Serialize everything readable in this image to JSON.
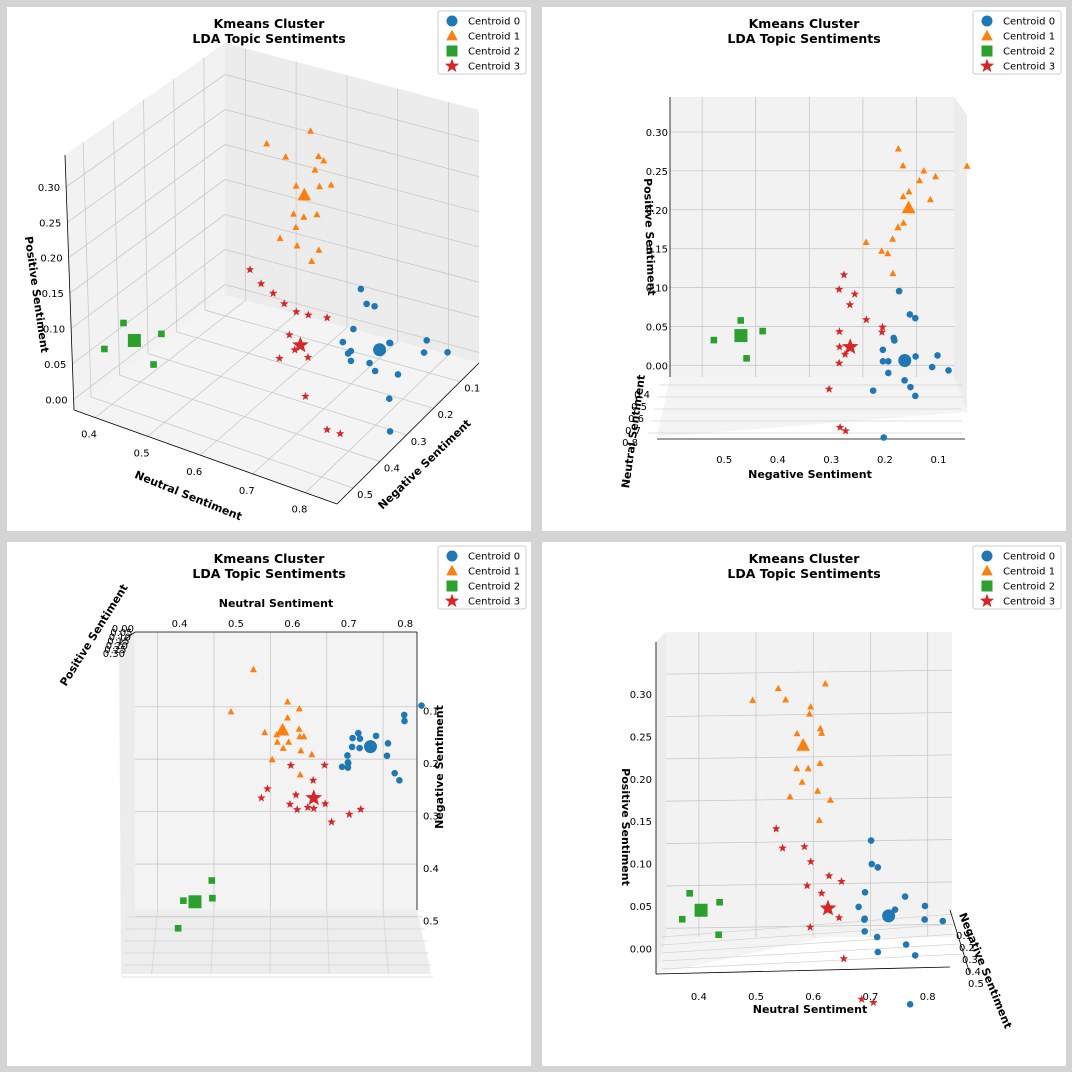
{
  "colors": {
    "Centroid 0": "#1f77b4",
    "Centroid 1": "#ff7f0e",
    "Centroid 2": "#2ca02c",
    "Centroid 3": "#d62728"
  },
  "chart_data": [
    {
      "type": "scatter",
      "title": "Kmeans Cluster\nLDA Topic Sentiments",
      "view": "perspective",
      "xlabel": "Neutral Sentiment",
      "ylabel": "Negative Sentiment",
      "zlabel": "Positive Sentiment",
      "x_ticks": [
        "0.4",
        "0.5",
        "0.6",
        "0.7",
        "0.8"
      ],
      "y_ticks": [
        "0.1",
        "0.2",
        "0.3",
        "0.4",
        "0.5"
      ],
      "z_ticks": [
        "0.00",
        "0.05",
        "0.10",
        "0.15",
        "0.20",
        "0.25",
        "0.30"
      ],
      "legend": [
        "Centroid 0",
        "Centroid 1",
        "Centroid 2",
        "Centroid 3"
      ],
      "legend_position": "top-right",
      "grid": true
    },
    {
      "type": "scatter",
      "title": "Kmeans Cluster\nLDA Topic Sentiments",
      "view": "front (negative vs positive)",
      "xlabel": "Negative Sentiment",
      "ylabel": "Neutral Sentiment",
      "zlabel": "Positive Sentiment",
      "x_ticks": [
        "0.5",
        "0.4",
        "0.3",
        "0.2",
        "0.1"
      ],
      "y_ticks": [
        "0.4",
        "0.5",
        "0.6",
        "0.7",
        "0.8"
      ],
      "z_ticks": [
        "0.00",
        "0.05",
        "0.10",
        "0.15",
        "0.20",
        "0.25",
        "0.30"
      ],
      "legend": [
        "Centroid 0",
        "Centroid 1",
        "Centroid 2",
        "Centroid 3"
      ],
      "legend_position": "top-right",
      "grid": true
    },
    {
      "type": "scatter",
      "title": "Kmeans Cluster\nLDA Topic Sentiments",
      "view": "top (neutral vs negative)",
      "xlabel": "Neutral Sentiment",
      "ylabel": "Negative Sentiment",
      "zlabel": "Positive Sentiment",
      "x_ticks": [
        "0.4",
        "0.5",
        "0.6",
        "0.7",
        "0.8"
      ],
      "y_ticks": [
        "0.1",
        "0.2",
        "0.3",
        "0.4",
        "0.5"
      ],
      "z_ticks": [
        "0.00",
        "0.05",
        "0.10",
        "0.15",
        "0.20",
        "0.25",
        "0.30"
      ],
      "legend": [
        "Centroid 0",
        "Centroid 1",
        "Centroid 2",
        "Centroid 3"
      ],
      "legend_position": "top-right",
      "grid": true
    },
    {
      "type": "scatter",
      "title": "Kmeans Cluster\nLDA Topic Sentiments",
      "view": "side (neutral vs positive)",
      "xlabel": "Neutral Sentiment",
      "ylabel": "Negative Sentiment",
      "zlabel": "Positive Sentiment",
      "x_ticks": [
        "0.4",
        "0.5",
        "0.6",
        "0.7",
        "0.8"
      ],
      "y_ticks": [
        "0.1",
        "0.2",
        "0.3",
        "0.4",
        "0.5"
      ],
      "z_ticks": [
        "0.00",
        "0.05",
        "0.10",
        "0.15",
        "0.20",
        "0.25",
        "0.30"
      ],
      "legend": [
        "Centroid 0",
        "Centroid 1",
        "Centroid 2",
        "Centroid 3"
      ],
      "legend_position": "top-right",
      "grid": true
    }
  ],
  "clusters": [
    {
      "name": "Centroid 0",
      "marker": "circle",
      "centroid": {
        "neutral": 0.74,
        "negative": 0.17,
        "positive": 0.035
      },
      "points": [
        {
          "neutral": 0.71,
          "negative": 0.18,
          "positive": 0.125
        },
        {
          "neutral": 0.71,
          "negative": 0.16,
          "positive": 0.095
        },
        {
          "neutral": 0.72,
          "negative": 0.15,
          "positive": 0.09
        },
        {
          "neutral": 0.7,
          "negative": 0.19,
          "positive": 0.065
        },
        {
          "neutral": 0.77,
          "negative": 0.19,
          "positive": 0.06
        },
        {
          "neutral": 0.8,
          "negative": 0.11,
          "positive": 0.04
        },
        {
          "neutral": 0.75,
          "negative": 0.15,
          "positive": 0.04
        },
        {
          "neutral": 0.69,
          "negative": 0.21,
          "positive": 0.05
        },
        {
          "neutral": 0.7,
          "negative": 0.21,
          "positive": 0.035
        },
        {
          "neutral": 0.7,
          "negative": 0.2,
          "positive": 0.035
        },
        {
          "neutral": 0.8,
          "negative": 0.12,
          "positive": 0.025
        },
        {
          "neutral": 0.83,
          "negative": 0.09,
          "positive": 0.02
        },
        {
          "neutral": 0.7,
          "negative": 0.2,
          "positive": 0.02
        },
        {
          "neutral": 0.72,
          "negative": 0.17,
          "positive": 0.01
        },
        {
          "neutral": 0.77,
          "negative": 0.16,
          "positive": 0.0
        },
        {
          "neutral": 0.79,
          "negative": 0.23,
          "positive": -0.005
        },
        {
          "neutral": 0.72,
          "negative": 0.15,
          "positive": -0.01
        },
        {
          "neutral": 0.78,
          "negative": 0.21,
          "positive": -0.065
        }
      ]
    },
    {
      "name": "Centroid 1",
      "marker": "triangle",
      "centroid": {
        "neutral": 0.59,
        "negative": 0.16,
        "positive": 0.235
      },
      "points": [
        {
          "neutral": 0.54,
          "negative": 0.05,
          "positive": 0.29
        },
        {
          "neutral": 0.63,
          "negative": 0.18,
          "positive": 0.31
        },
        {
          "neutral": 0.56,
          "negative": 0.17,
          "positive": 0.29
        },
        {
          "neutral": 0.6,
          "negative": 0.14,
          "positive": 0.27
        },
        {
          "neutral": 0.6,
          "negative": 0.11,
          "positive": 0.275
        },
        {
          "neutral": 0.5,
          "negative": 0.13,
          "positive": 0.285
        },
        {
          "neutral": 0.62,
          "negative": 0.16,
          "positive": 0.255
        },
        {
          "neutral": 0.58,
          "negative": 0.17,
          "positive": 0.25
        },
        {
          "neutral": 0.62,
          "negative": 0.12,
          "positive": 0.245
        },
        {
          "neutral": 0.58,
          "negative": 0.18,
          "positive": 0.21
        },
        {
          "neutral": 0.6,
          "negative": 0.18,
          "positive": 0.21
        },
        {
          "neutral": 0.62,
          "negative": 0.17,
          "positive": 0.215
        },
        {
          "neutral": 0.59,
          "negative": 0.19,
          "positive": 0.195
        },
        {
          "neutral": 0.64,
          "negative": 0.2,
          "positive": 0.175
        },
        {
          "neutral": 0.62,
          "negative": 0.24,
          "positive": 0.19
        },
        {
          "neutral": 0.57,
          "negative": 0.21,
          "positive": 0.18
        },
        {
          "neutral": 0.62,
          "negative": 0.19,
          "positive": 0.15
        }
      ]
    },
    {
      "name": "Centroid 2",
      "marker": "square",
      "centroid": {
        "neutral": 0.43,
        "negative": 0.47,
        "positive": 0.075
      },
      "points": [
        {
          "neutral": 0.41,
          "negative": 0.47,
          "positive": 0.095
        },
        {
          "neutral": 0.46,
          "negative": 0.43,
          "positive": 0.08
        },
        {
          "neutral": 0.4,
          "negative": 0.52,
          "positive": 0.07
        },
        {
          "neutral": 0.46,
          "negative": 0.46,
          "positive": 0.045
        }
      ]
    },
    {
      "name": "Centroid 3",
      "marker": "star",
      "centroid": {
        "neutral": 0.64,
        "negative": 0.27,
        "positive": 0.055
      },
      "points": [
        {
          "neutral": 0.55,
          "negative": 0.28,
          "positive": 0.15
        },
        {
          "neutral": 0.6,
          "negative": 0.29,
          "positive": 0.13
        },
        {
          "neutral": 0.56,
          "negative": 0.26,
          "positive": 0.125
        },
        {
          "neutral": 0.61,
          "negative": 0.27,
          "positive": 0.11
        },
        {
          "neutral": 0.64,
          "negative": 0.24,
          "positive": 0.09
        },
        {
          "neutral": 0.66,
          "negative": 0.21,
          "positive": 0.08
        },
        {
          "neutral": 0.6,
          "negative": 0.21,
          "positive": 0.075
        },
        {
          "neutral": 0.63,
          "negative": 0.29,
          "positive": 0.075
        },
        {
          "neutral": 0.66,
          "negative": 0.28,
          "positive": 0.045
        },
        {
          "neutral": 0.61,
          "negative": 0.29,
          "positive": 0.035
        },
        {
          "neutral": 0.67,
          "negative": 0.31,
          "positive": 0.0
        },
        {
          "neutral": 0.7,
          "negative": 0.29,
          "positive": -0.05
        },
        {
          "neutral": 0.72,
          "negative": 0.28,
          "positive": -0.055
        },
        {
          "neutral": 0.64,
          "negative": 0.29,
          "positive": 0.055
        }
      ]
    }
  ]
}
